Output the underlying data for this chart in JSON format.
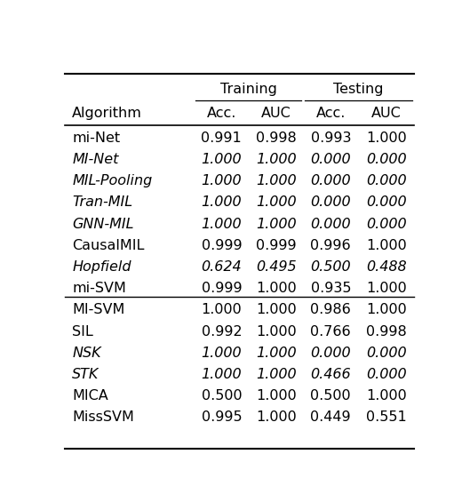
{
  "group1": [
    {
      "name": "mi-Net",
      "italic": false,
      "train_acc": "0.991",
      "train_auc": "0.998",
      "test_acc": "0.993",
      "test_auc": "1.000"
    },
    {
      "name": "MI-Net",
      "italic": true,
      "train_acc": "1.000",
      "train_auc": "1.000",
      "test_acc": "0.000",
      "test_auc": "0.000"
    },
    {
      "name": "MIL-Pooling",
      "italic": true,
      "train_acc": "1.000",
      "train_auc": "1.000",
      "test_acc": "0.000",
      "test_auc": "0.000"
    },
    {
      "name": "Tran-MIL",
      "italic": true,
      "train_acc": "1.000",
      "train_auc": "1.000",
      "test_acc": "0.000",
      "test_auc": "0.000"
    },
    {
      "name": "GNN-MIL",
      "italic": true,
      "train_acc": "1.000",
      "train_auc": "1.000",
      "test_acc": "0.000",
      "test_auc": "0.000"
    },
    {
      "name": "CausalMIL",
      "italic": false,
      "train_acc": "0.999",
      "train_auc": "0.999",
      "test_acc": "0.996",
      "test_auc": "1.000"
    },
    {
      "name": "Hopfield",
      "italic": true,
      "train_acc": "0.624",
      "train_auc": "0.495",
      "test_acc": "0.500",
      "test_auc": "0.488"
    }
  ],
  "group2": [
    {
      "name": "mi-SVM",
      "italic": false,
      "train_acc": "0.999",
      "train_auc": "1.000",
      "test_acc": "0.935",
      "test_auc": "1.000"
    },
    {
      "name": "MI-SVM",
      "italic": false,
      "train_acc": "1.000",
      "train_auc": "1.000",
      "test_acc": "0.986",
      "test_auc": "1.000"
    },
    {
      "name": "SIL",
      "italic": false,
      "train_acc": "0.992",
      "train_auc": "1.000",
      "test_acc": "0.766",
      "test_auc": "0.998"
    },
    {
      "name": "NSK",
      "italic": true,
      "train_acc": "1.000",
      "train_auc": "1.000",
      "test_acc": "0.000",
      "test_auc": "0.000"
    },
    {
      "name": "STK",
      "italic": true,
      "train_acc": "1.000",
      "train_auc": "1.000",
      "test_acc": "0.466",
      "test_auc": "0.000"
    },
    {
      "name": "MICA",
      "italic": false,
      "train_acc": "0.500",
      "train_auc": "1.000",
      "test_acc": "0.500",
      "test_auc": "1.000"
    },
    {
      "name": "MissSVM",
      "italic": false,
      "train_acc": "0.995",
      "train_auc": "1.000",
      "test_acc": "0.449",
      "test_auc": "0.551"
    }
  ],
  "bg_color": "#ffffff",
  "text_color": "#000000",
  "fontsize": 11.5
}
